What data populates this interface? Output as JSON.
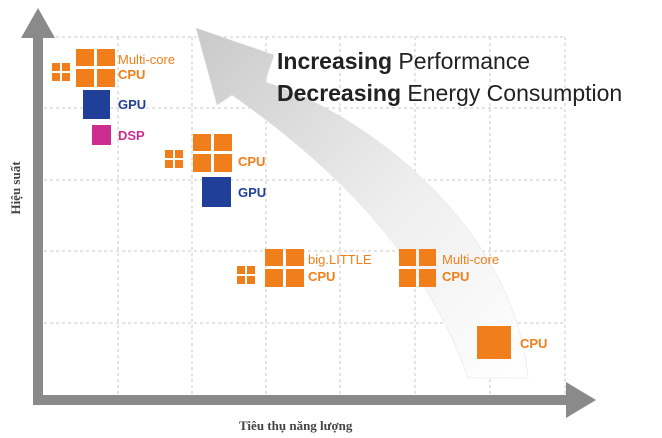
{
  "headline": {
    "line1_bold": "Increasing",
    "line1_rest": " Performance",
    "line2_bold": "Decreasing",
    "line2_rest": " Energy Consumption"
  },
  "axes": {
    "y_label": "Hiệu suất",
    "x_label": "Tiêu thụ năng lượng"
  },
  "nodes": {
    "top_multicore_label": "Multi-core",
    "top_cpu_label": "CPU",
    "top_gpu_label": "GPU",
    "top_dsp_label": "DSP",
    "mid_cpu_label": "CPU",
    "mid_gpu_label": "GPU",
    "biglittle_label": "big.LITTLE",
    "biglittle_cpu_label": "CPU",
    "right_multicore_label": "Multi-core",
    "right_cpu_label": "CPU",
    "single_cpu_label": "CPU"
  },
  "colors": {
    "orange": "#f07f1b",
    "blue": "#1f3f99",
    "pink": "#cc2e8f",
    "axis": "#8a8a8a",
    "grid": "#c8c8c8"
  }
}
